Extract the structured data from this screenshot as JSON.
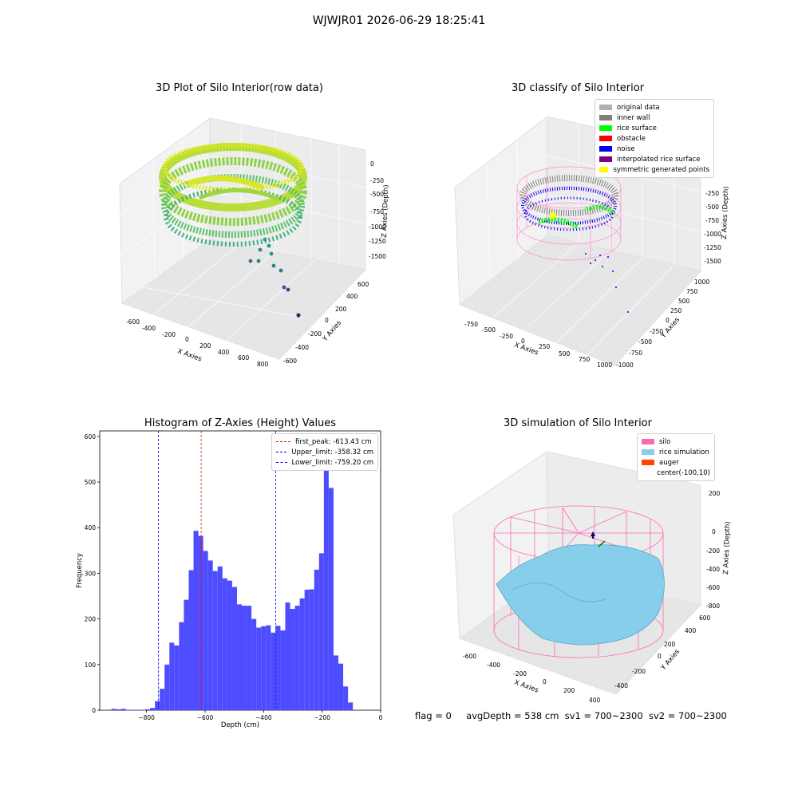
{
  "figure": {
    "suptitle": "WJWJR01 2026-06-29 18:25:41",
    "footer": {
      "flag": "flag = 0",
      "avg_depth": "avgDepth = 538 cm",
      "sv1": "sv1 = 700~2300",
      "sv2": "sv2 = 700~2300"
    }
  },
  "colors": {
    "histogram_bar": "#4d4dff",
    "first_peak_line": "#ff0000",
    "limit_lines": "#0000ff",
    "silo": "#ff69b4",
    "rice_simulation": "#87ceeb",
    "auger": "#ff4500",
    "original_data": "#b0b0b0",
    "inner_wall": "#808080",
    "rice_surface": "#00ff00",
    "obstacle": "#ff0000",
    "noise": "#0000ff",
    "interpolated_rice_surface": "#800080",
    "symmetric_generated_points": "#ffff00"
  },
  "chart_data": [
    {
      "type": "scatter",
      "title": "3D Plot of Silo Interior(row data)",
      "xlabel": "X Axies",
      "ylabel": "Y Axies",
      "zlabel": "Z Axies (Depth)",
      "x_ticks": [
        "-600",
        "-400",
        "-200",
        "0",
        "200",
        "400",
        "600",
        "800"
      ],
      "y_ticks": [
        "-600",
        "-400",
        "-200",
        "0",
        "200",
        "400",
        "600"
      ],
      "z_ticks": [
        "0",
        "-250",
        "-500",
        "-750",
        "-1000",
        "-1250",
        "-1500"
      ]
    },
    {
      "type": "scatter",
      "title": "3D classify of Silo Interior",
      "xlabel": "X Axies",
      "ylabel": "Y Axies",
      "zlabel": "Z Axies (Depth)",
      "x_ticks": [
        "-750",
        "-500",
        "-250",
        "0",
        "250",
        "500",
        "750",
        "1000"
      ],
      "y_ticks": [
        "-1000",
        "-750",
        "-500",
        "-250",
        "0",
        "250",
        "500",
        "750",
        "1000"
      ],
      "z_ticks": [
        "0",
        "-250",
        "-500",
        "-750",
        "-1000",
        "-1250",
        "-1500"
      ],
      "legend": [
        "original data",
        "inner wall",
        "rice surface",
        "obstacle",
        "noise",
        "interpolated rice surface",
        "symmetric generated points"
      ],
      "legend_position": "top-right"
    },
    {
      "type": "bar",
      "title": "Histogram of Z-Axies (Height) Values",
      "xlabel": "Depth (cm)",
      "ylabel": "Frequency",
      "xlim": [
        -960,
        0
      ],
      "ylim": [
        0,
        612
      ],
      "x_ticks": [
        -800,
        -600,
        -400,
        -200,
        0
      ],
      "y_ticks": [
        0,
        100,
        200,
        300,
        400,
        500,
        600
      ],
      "bin_start": -920,
      "bin_width": 16.5,
      "values": [
        3,
        2,
        3,
        1,
        1,
        1,
        1,
        2,
        5,
        20,
        47,
        100,
        148,
        142,
        193,
        242,
        307,
        393,
        382,
        349,
        328,
        305,
        315,
        289,
        284,
        270,
        232,
        229,
        229,
        200,
        181,
        184,
        186,
        170,
        185,
        175,
        236,
        222,
        229,
        245,
        264,
        265,
        308,
        344,
        580,
        487,
        120,
        102,
        52,
        17
      ],
      "vlines": [
        {
          "label": "first_peak: -613.43 cm",
          "x": -613.43,
          "color": "#ff0000"
        },
        {
          "label": "Upper_limit: -358.32 cm",
          "x": -358.32,
          "color": "#0000ff"
        },
        {
          "label": "Lower_limit: -759.20 cm",
          "x": -759.2,
          "color": "#0000ff"
        }
      ],
      "legend_position": "top-right"
    },
    {
      "type": "area",
      "title": "3D simulation of Silo Interior",
      "xlabel": "X Axies",
      "ylabel": "Y Axies",
      "zlabel": "Z Axies (Depth)",
      "x_ticks": [
        "-600",
        "-400",
        "-200",
        "0",
        "200",
        "400"
      ],
      "y_ticks": [
        "-400",
        "-200",
        "0",
        "200",
        "400",
        "600"
      ],
      "z_ticks": [
        "200",
        "0",
        "-200",
        "-400",
        "-600",
        "-800"
      ],
      "legend": [
        "silo",
        "rice simulation",
        "auger",
        "center(-100,10)"
      ],
      "legend_position": "top-right"
    }
  ]
}
